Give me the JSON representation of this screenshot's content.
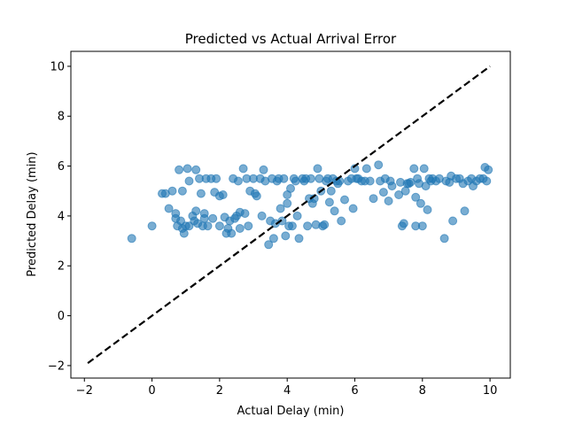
{
  "chart_data": {
    "type": "scatter",
    "title": "Predicted vs Actual Arrival Error",
    "xlabel": "Actual Delay (min)",
    "ylabel": "Predicted Delay (min)",
    "xlim": [
      -2.4,
      10.6
    ],
    "ylim": [
      -2.5,
      10.6
    ],
    "xticks": [
      -2,
      0,
      2,
      4,
      6,
      8,
      10
    ],
    "yticks": [
      -2,
      0,
      2,
      4,
      6,
      8,
      10
    ],
    "grid": false,
    "point_color": "#1f77b4",
    "reference_line": {
      "style": "dashed",
      "color": "#000000",
      "x": [
        -1.9,
        10.0
      ],
      "y": [
        -1.9,
        10.0
      ]
    },
    "points": [
      [
        -0.6,
        3.1
      ],
      [
        0.0,
        3.6
      ],
      [
        0.3,
        4.9
      ],
      [
        0.4,
        4.9
      ],
      [
        0.5,
        4.3
      ],
      [
        0.6,
        5.0
      ],
      [
        0.7,
        3.9
      ],
      [
        0.7,
        4.1
      ],
      [
        0.75,
        3.6
      ],
      [
        0.8,
        5.85
      ],
      [
        0.85,
        3.8
      ],
      [
        0.9,
        5.0
      ],
      [
        0.9,
        3.5
      ],
      [
        0.95,
        3.3
      ],
      [
        1.0,
        3.6
      ],
      [
        1.05,
        5.9
      ],
      [
        1.1,
        5.4
      ],
      [
        1.1,
        3.6
      ],
      [
        1.2,
        4.0
      ],
      [
        1.25,
        3.8
      ],
      [
        1.3,
        5.85
      ],
      [
        1.3,
        4.2
      ],
      [
        1.35,
        3.7
      ],
      [
        1.4,
        5.5
      ],
      [
        1.45,
        4.9
      ],
      [
        1.5,
        3.6
      ],
      [
        1.55,
        3.9
      ],
      [
        1.55,
        4.1
      ],
      [
        1.6,
        5.5
      ],
      [
        1.65,
        3.6
      ],
      [
        1.75,
        5.5
      ],
      [
        1.8,
        3.9
      ],
      [
        1.85,
        4.95
      ],
      [
        1.9,
        5.5
      ],
      [
        2.0,
        4.8
      ],
      [
        2.0,
        3.6
      ],
      [
        2.1,
        4.85
      ],
      [
        2.15,
        3.95
      ],
      [
        2.2,
        3.3
      ],
      [
        2.25,
        3.5
      ],
      [
        2.3,
        3.8
      ],
      [
        2.35,
        3.3
      ],
      [
        2.4,
        5.5
      ],
      [
        2.45,
        3.9
      ],
      [
        2.5,
        4.0
      ],
      [
        2.55,
        5.4
      ],
      [
        2.6,
        4.15
      ],
      [
        2.6,
        3.5
      ],
      [
        2.7,
        5.9
      ],
      [
        2.75,
        4.1
      ],
      [
        2.8,
        5.5
      ],
      [
        2.85,
        3.6
      ],
      [
        2.9,
        5.0
      ],
      [
        3.0,
        5.5
      ],
      [
        3.05,
        4.9
      ],
      [
        3.1,
        4.8
      ],
      [
        3.2,
        5.5
      ],
      [
        3.25,
        4.0
      ],
      [
        3.3,
        5.85
      ],
      [
        3.35,
        5.4
      ],
      [
        3.45,
        2.85
      ],
      [
        3.5,
        3.8
      ],
      [
        3.55,
        5.5
      ],
      [
        3.6,
        3.1
      ],
      [
        3.65,
        3.7
      ],
      [
        3.7,
        5.4
      ],
      [
        3.75,
        5.5
      ],
      [
        3.8,
        4.3
      ],
      [
        3.85,
        3.8
      ],
      [
        3.9,
        5.5
      ],
      [
        3.95,
        3.2
      ],
      [
        4.0,
        4.5
      ],
      [
        4.0,
        4.85
      ],
      [
        4.05,
        3.6
      ],
      [
        4.1,
        5.1
      ],
      [
        4.15,
        3.6
      ],
      [
        4.2,
        5.5
      ],
      [
        4.25,
        5.4
      ],
      [
        4.3,
        4.0
      ],
      [
        4.35,
        3.1
      ],
      [
        4.45,
        5.5
      ],
      [
        4.5,
        5.4
      ],
      [
        4.55,
        5.5
      ],
      [
        4.6,
        3.6
      ],
      [
        4.65,
        4.7
      ],
      [
        4.7,
        5.5
      ],
      [
        4.75,
        4.5
      ],
      [
        4.8,
        4.7
      ],
      [
        4.85,
        3.65
      ],
      [
        4.9,
        5.9
      ],
      [
        4.95,
        5.5
      ],
      [
        5.0,
        5.0
      ],
      [
        5.05,
        3.6
      ],
      [
        5.1,
        3.65
      ],
      [
        5.15,
        5.4
      ],
      [
        5.2,
        5.5
      ],
      [
        5.25,
        4.55
      ],
      [
        5.3,
        5.0
      ],
      [
        5.35,
        5.5
      ],
      [
        5.4,
        4.2
      ],
      [
        5.45,
        5.4
      ],
      [
        5.5,
        5.3
      ],
      [
        5.55,
        5.4
      ],
      [
        5.6,
        3.8
      ],
      [
        5.7,
        4.65
      ],
      [
        5.8,
        5.4
      ],
      [
        5.9,
        5.5
      ],
      [
        5.95,
        4.3
      ],
      [
        6.0,
        5.9
      ],
      [
        6.05,
        5.5
      ],
      [
        6.1,
        5.5
      ],
      [
        6.2,
        5.4
      ],
      [
        6.3,
        5.4
      ],
      [
        6.35,
        5.9
      ],
      [
        6.45,
        5.4
      ],
      [
        6.55,
        4.7
      ],
      [
        6.7,
        6.05
      ],
      [
        6.75,
        5.4
      ],
      [
        6.85,
        4.95
      ],
      [
        6.9,
        5.5
      ],
      [
        7.0,
        4.6
      ],
      [
        7.05,
        5.4
      ],
      [
        7.1,
        5.2
      ],
      [
        7.3,
        4.85
      ],
      [
        7.35,
        5.35
      ],
      [
        7.4,
        3.6
      ],
      [
        7.45,
        3.7
      ],
      [
        7.5,
        5.0
      ],
      [
        7.55,
        5.3
      ],
      [
        7.6,
        5.3
      ],
      [
        7.65,
        5.35
      ],
      [
        7.75,
        5.9
      ],
      [
        7.8,
        4.75
      ],
      [
        7.8,
        3.6
      ],
      [
        7.85,
        5.5
      ],
      [
        7.9,
        5.3
      ],
      [
        7.95,
        4.5
      ],
      [
        8.0,
        3.6
      ],
      [
        8.05,
        5.9
      ],
      [
        8.1,
        5.2
      ],
      [
        8.15,
        4.25
      ],
      [
        8.2,
        5.5
      ],
      [
        8.25,
        5.4
      ],
      [
        8.3,
        5.5
      ],
      [
        8.4,
        5.4
      ],
      [
        8.5,
        5.5
      ],
      [
        8.65,
        3.1
      ],
      [
        8.7,
        5.4
      ],
      [
        8.8,
        5.35
      ],
      [
        8.85,
        5.6
      ],
      [
        8.9,
        3.8
      ],
      [
        9.0,
        5.5
      ],
      [
        9.1,
        5.5
      ],
      [
        9.2,
        5.3
      ],
      [
        9.25,
        4.2
      ],
      [
        9.35,
        5.4
      ],
      [
        9.45,
        5.5
      ],
      [
        9.5,
        5.2
      ],
      [
        9.6,
        5.4
      ],
      [
        9.7,
        5.5
      ],
      [
        9.8,
        5.5
      ],
      [
        9.85,
        5.95
      ],
      [
        9.9,
        5.4
      ],
      [
        9.95,
        5.85
      ]
    ]
  }
}
